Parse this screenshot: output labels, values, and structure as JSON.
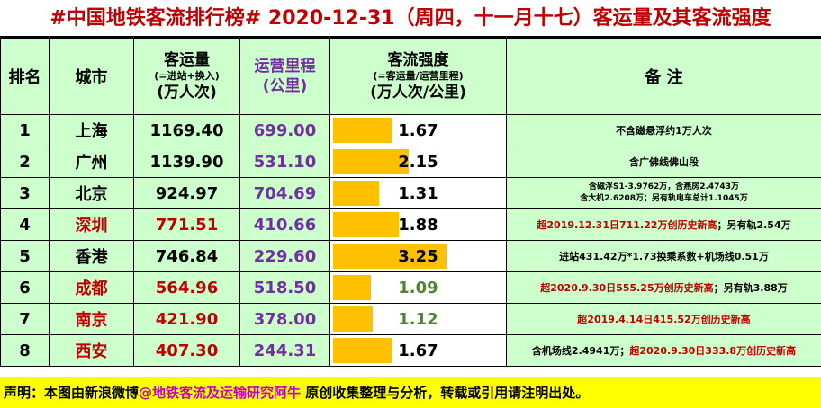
{
  "title": "#中国地铁客流排行榜# 2020-12-31（周四，十一月十七）客运量及其客流强度",
  "headers": {
    "rank": "排名",
    "city": "城市",
    "volume": [
      "客运量",
      "(=进站+换入)",
      "(万人次)"
    ],
    "length": [
      "运营里程",
      "(公里)"
    ],
    "intensity": [
      "客流强度",
      "(=客运量/运营里程)",
      "(万人次/公里)"
    ],
    "note": "备  注"
  },
  "rows": [
    {
      "rank": "1",
      "city": "上海",
      "city_red": false,
      "volume": "1169.40",
      "volume_red": false,
      "length": "699.00",
      "intensity": "1.67",
      "intensity_value": 1.67,
      "intensity_green": false,
      "note_parts": [
        {
          "text": "不含磁悬浮约1万人次",
          "red": false
        }
      ]
    },
    {
      "rank": "2",
      "city": "广州",
      "city_red": false,
      "volume": "1139.90",
      "volume_red": false,
      "length": "531.10",
      "intensity": "2.15",
      "intensity_value": 2.15,
      "intensity_green": false,
      "note_parts": [
        {
          "text": "含广佛线佛山段",
          "red": false
        }
      ]
    },
    {
      "rank": "3",
      "city": "北京",
      "city_red": false,
      "volume": "924.97",
      "volume_red": false,
      "length": "704.69",
      "intensity": "1.31",
      "intensity_value": 1.31,
      "intensity_green": false,
      "note_lines": [
        "含磁浮S1-3.9762万，含燕房2.4743万",
        "含大机2.6208万；另有轨电车总计1.1045万"
      ]
    },
    {
      "rank": "4",
      "city": "深圳",
      "city_red": true,
      "volume": "771.51",
      "volume_red": true,
      "length": "410.66",
      "intensity": "1.88",
      "intensity_value": 1.88,
      "intensity_green": false,
      "note_parts": [
        {
          "text": "超2019.12.31日711.22万创历史新高",
          "red": true
        },
        {
          "text": "；另有轨2.54万",
          "red": false
        }
      ]
    },
    {
      "rank": "5",
      "city": "香港",
      "city_red": false,
      "volume": "746.84",
      "volume_red": false,
      "length": "229.60",
      "intensity": "3.25",
      "intensity_value": 3.25,
      "intensity_green": false,
      "note_parts": [
        {
          "text": "进站431.42万*1.73换乘系数+机场线0.51万",
          "red": false
        }
      ]
    },
    {
      "rank": "6",
      "city": "成都",
      "city_red": true,
      "volume": "564.96",
      "volume_red": true,
      "length": "518.50",
      "intensity": "1.09",
      "intensity_value": 1.09,
      "intensity_green": true,
      "note_parts": [
        {
          "text": "超2020.9.30日555.25万创历史新高",
          "red": true
        },
        {
          "text": "；另有轨3.88万",
          "red": false
        }
      ]
    },
    {
      "rank": "7",
      "city": "南京",
      "city_red": true,
      "volume": "421.90",
      "volume_red": true,
      "length": "378.00",
      "intensity": "1.12",
      "intensity_value": 1.12,
      "intensity_green": true,
      "note_parts": [
        {
          "text": "超2019.4.14日415.52万创历史新高",
          "red": true
        }
      ]
    },
    {
      "rank": "8",
      "city": "西安",
      "city_red": true,
      "volume": "407.30",
      "volume_red": true,
      "length": "244.31",
      "intensity": "1.67",
      "intensity_value": 1.67,
      "intensity_green": false,
      "note_parts": [
        {
          "text": "含机场线2.4941万；",
          "red": false
        },
        {
          "text": "超2020.9.30日333.8万创历史新高",
          "red": true
        }
      ]
    }
  ],
  "intensity_scale_max": 3.25,
  "footer": {
    "prefix": "声明：本图由新浪微博",
    "handle": "@地铁客流及运输研究阿牛",
    "suffix": " 原创收集整理与分析，转载或引用请注明出处。"
  },
  "colors": {
    "header_bg": "#ccffcc",
    "bar": "#ffc000",
    "title_red": "#c00000",
    "purple": "#7030a0",
    "green": "#548235",
    "footer_bg": "#ffff00"
  }
}
